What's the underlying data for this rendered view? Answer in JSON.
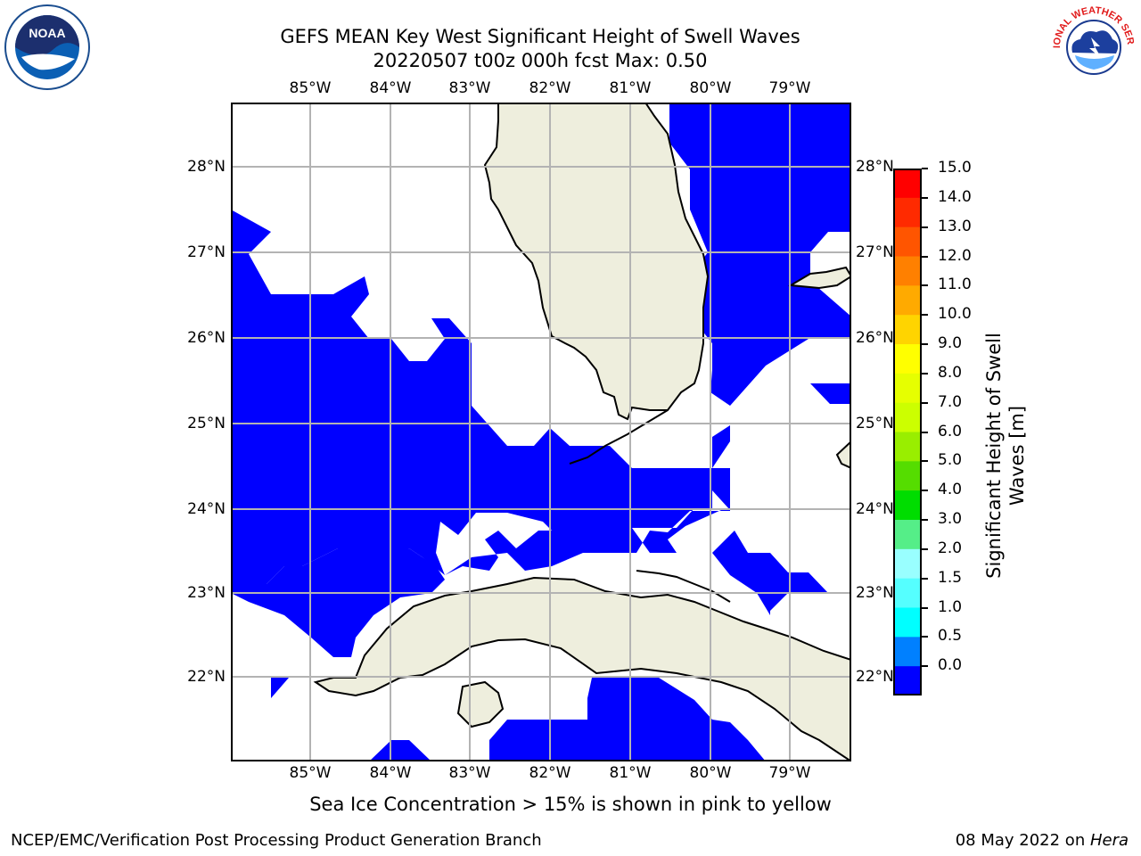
{
  "title": {
    "line1": "GEFS MEAN Key West Significant Height of Swell Waves",
    "line2": "20220507 t00z 000h fcst   Max: 0.50"
  },
  "map": {
    "lon_labels": [
      "85°W",
      "84°W",
      "83°W",
      "82°W",
      "81°W",
      "80°W",
      "79°W"
    ],
    "lat_labels": [
      "28°N",
      "27°N",
      "26°N",
      "25°N",
      "24°N",
      "23°N",
      "22°N"
    ],
    "land_color": "#eeeedd",
    "water_fill_color": "#0000ff"
  },
  "colorbar": {
    "title_line1": "Significant Height of Swell",
    "title_line2": "Waves [m]",
    "ticks": [
      "15.0",
      "14.0",
      "13.0",
      "12.0",
      "11.0",
      "10.0",
      "9.0",
      "8.0",
      "7.0",
      "6.0",
      "5.0",
      "4.0",
      "3.0",
      "2.0",
      "1.5",
      "1.0",
      "0.5",
      "0.0"
    ],
    "colors": [
      "#ff0000",
      "#ff2a00",
      "#ff5500",
      "#ff8000",
      "#ffaa00",
      "#ffd400",
      "#ffff00",
      "#e6ff00",
      "#ccff00",
      "#99ee00",
      "#55dd00",
      "#00dd00",
      "#55ee88",
      "#99ffff",
      "#55ffff",
      "#00ffff",
      "#0080ff",
      "#0000ff"
    ]
  },
  "caption": "Sea Ice Concentration > 15% is shown in pink to yellow",
  "footer": {
    "left": "NCEP/EMC/Verification Post Processing Product Generation Branch",
    "date": "08 May 2022 on ",
    "machine": "Hera"
  },
  "logos": {
    "left_text": "NOAA",
    "right_text": "NATIONAL WEATHER SERVICE"
  }
}
